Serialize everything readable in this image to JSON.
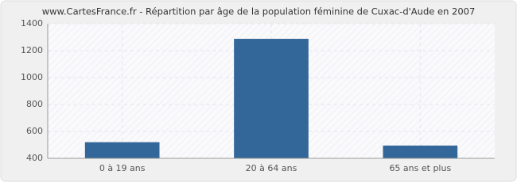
{
  "chart_data": {
    "type": "bar",
    "title": "www.CartesFrance.fr - Répartition par âge de la population féminine de Cuxac-d'Aude en 2007",
    "categories": [
      "0 à 19 ans",
      "20 à 64 ans",
      "65 ans et plus"
    ],
    "values": [
      520,
      1288,
      495
    ],
    "color": "#336699",
    "ylim": [
      400,
      1400
    ],
    "yticks": [
      400,
      600,
      800,
      1000,
      1200,
      1400
    ],
    "grid": true
  }
}
